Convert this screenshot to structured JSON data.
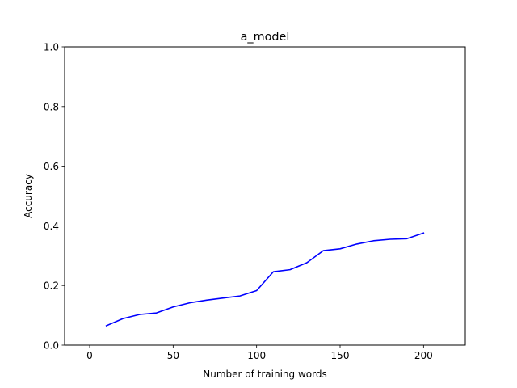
{
  "chart_data": {
    "type": "line",
    "title": "a_model",
    "xlabel": "Number of training words",
    "ylabel": "Accuracy",
    "xlim": [
      -15,
      225
    ],
    "ylim": [
      0.0,
      1.0
    ],
    "xticks": [
      0,
      50,
      100,
      150,
      200
    ],
    "yticks": [
      0.0,
      0.2,
      0.4,
      0.6,
      0.8,
      1.0
    ],
    "xtick_labels": [
      "0",
      "50",
      "100",
      "150",
      "200"
    ],
    "ytick_labels": [
      "0.0",
      "0.2",
      "0.4",
      "0.6",
      "0.8",
      "1.0"
    ],
    "grid": false,
    "series": [
      {
        "color": "#0000ff",
        "x": [
          10,
          20,
          30,
          40,
          50,
          60,
          70,
          80,
          90,
          100,
          110,
          120,
          130,
          140,
          150,
          160,
          170,
          180,
          190,
          200
        ],
        "y": [
          0.065,
          0.089,
          0.103,
          0.108,
          0.128,
          0.142,
          0.151,
          0.158,
          0.165,
          0.183,
          0.246,
          0.253,
          0.276,
          0.317,
          0.323,
          0.339,
          0.35,
          0.355,
          0.357,
          0.376
        ]
      }
    ]
  }
}
